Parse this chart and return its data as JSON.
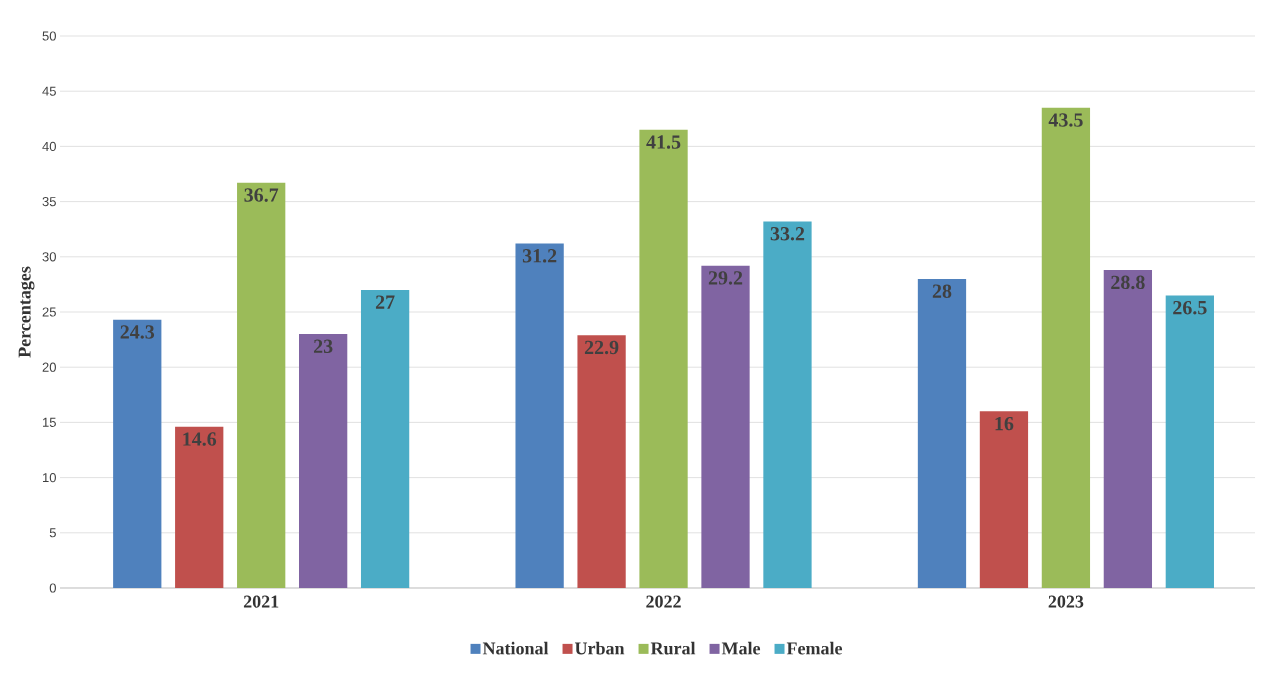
{
  "chart_data": {
    "type": "bar",
    "ylabel": "Percentages",
    "categories": [
      "2021",
      "2022",
      "2023"
    ],
    "series": [
      {
        "name": "National",
        "color": "#4f81bd",
        "values": [
          24.3,
          31.2,
          28
        ]
      },
      {
        "name": "Urban",
        "color": "#c0504d",
        "values": [
          14.6,
          22.9,
          16
        ]
      },
      {
        "name": "Rural",
        "color": "#9bbb59",
        "values": [
          36.7,
          41.5,
          43.5
        ]
      },
      {
        "name": "Male",
        "color": "#8064a2",
        "values": [
          23,
          29.2,
          28.8
        ]
      },
      {
        "name": "Female",
        "color": "#4bacc6",
        "values": [
          27,
          33.2,
          26.5
        ]
      }
    ],
    "ylim": [
      0,
      50
    ],
    "yticks": [
      0,
      5,
      10,
      15,
      20,
      25,
      30,
      35,
      40,
      45,
      50
    ],
    "grid": "y",
    "legend": "bottom",
    "data_labels": true
  }
}
